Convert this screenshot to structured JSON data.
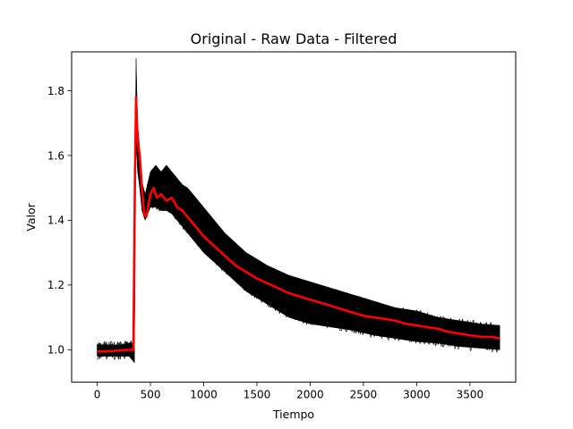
{
  "chart_data": {
    "type": "line",
    "title": "Original - Raw Data - Filtered",
    "xlabel": "Tiempo",
    "ylabel": "Valor",
    "xlim": [
      -240,
      3930
    ],
    "ylim": [
      0.9,
      1.92
    ],
    "xticks": [
      0,
      500,
      1000,
      1500,
      2000,
      2500,
      3000,
      3500
    ],
    "yticks": [
      1.0,
      1.2,
      1.4,
      1.6,
      1.8
    ],
    "ytick_labels": [
      "1.0",
      "1.2",
      "1.4",
      "1.6",
      "1.8"
    ],
    "grid": false,
    "legend": "none",
    "colors": {
      "raw": "#000000",
      "filtered": "#ff0000"
    },
    "series": [
      {
        "role": "raw",
        "style": "band of many overlapping black traces",
        "x": [
          0,
          100,
          200,
          300,
          350,
          355,
          365,
          380,
          400,
          420,
          450,
          500,
          550,
          600,
          650,
          700,
          750,
          800,
          850,
          900,
          1000,
          1100,
          1200,
          1300,
          1400,
          1500,
          1600,
          1700,
          1800,
          1900,
          2000,
          2200,
          2400,
          2600,
          2800,
          3000,
          3200,
          3400,
          3600,
          3780
        ],
        "upper": [
          1.015,
          1.015,
          1.015,
          1.02,
          1.02,
          1.6,
          1.9,
          1.7,
          1.62,
          1.52,
          1.48,
          1.55,
          1.57,
          1.55,
          1.57,
          1.55,
          1.53,
          1.51,
          1.5,
          1.48,
          1.44,
          1.4,
          1.36,
          1.33,
          1.3,
          1.28,
          1.26,
          1.245,
          1.23,
          1.22,
          1.21,
          1.19,
          1.17,
          1.15,
          1.13,
          1.12,
          1.1,
          1.09,
          1.08,
          1.075
        ],
        "lower": [
          0.98,
          0.98,
          0.98,
          0.98,
          0.96,
          1.4,
          1.66,
          1.55,
          1.5,
          1.43,
          1.4,
          1.44,
          1.44,
          1.43,
          1.43,
          1.42,
          1.4,
          1.38,
          1.36,
          1.34,
          1.3,
          1.27,
          1.24,
          1.21,
          1.18,
          1.16,
          1.14,
          1.12,
          1.1,
          1.09,
          1.08,
          1.07,
          1.06,
          1.045,
          1.035,
          1.025,
          1.02,
          1.01,
          1.005,
          1.0
        ]
      },
      {
        "role": "filtered",
        "x": [
          0,
          100,
          200,
          300,
          340,
          355,
          365,
          380,
          400,
          420,
          440,
          460,
          500,
          530,
          560,
          600,
          650,
          700,
          750,
          800,
          850,
          900,
          950,
          1000,
          1100,
          1200,
          1300,
          1400,
          1500,
          1600,
          1700,
          1800,
          1900,
          2000,
          2100,
          2200,
          2300,
          2400,
          2500,
          2600,
          2700,
          2800,
          2900,
          3000,
          3100,
          3200,
          3300,
          3400,
          3500,
          3600,
          3700,
          3780
        ],
        "values": [
          0.995,
          0.995,
          0.998,
          1.0,
          1.0,
          1.55,
          1.78,
          1.65,
          1.6,
          1.5,
          1.42,
          1.41,
          1.48,
          1.5,
          1.47,
          1.48,
          1.46,
          1.47,
          1.44,
          1.43,
          1.41,
          1.39,
          1.37,
          1.35,
          1.32,
          1.29,
          1.26,
          1.24,
          1.22,
          1.205,
          1.19,
          1.175,
          1.165,
          1.155,
          1.145,
          1.135,
          1.125,
          1.115,
          1.105,
          1.1,
          1.095,
          1.09,
          1.08,
          1.075,
          1.07,
          1.065,
          1.055,
          1.05,
          1.045,
          1.04,
          1.04,
          1.035
        ]
      }
    ]
  }
}
